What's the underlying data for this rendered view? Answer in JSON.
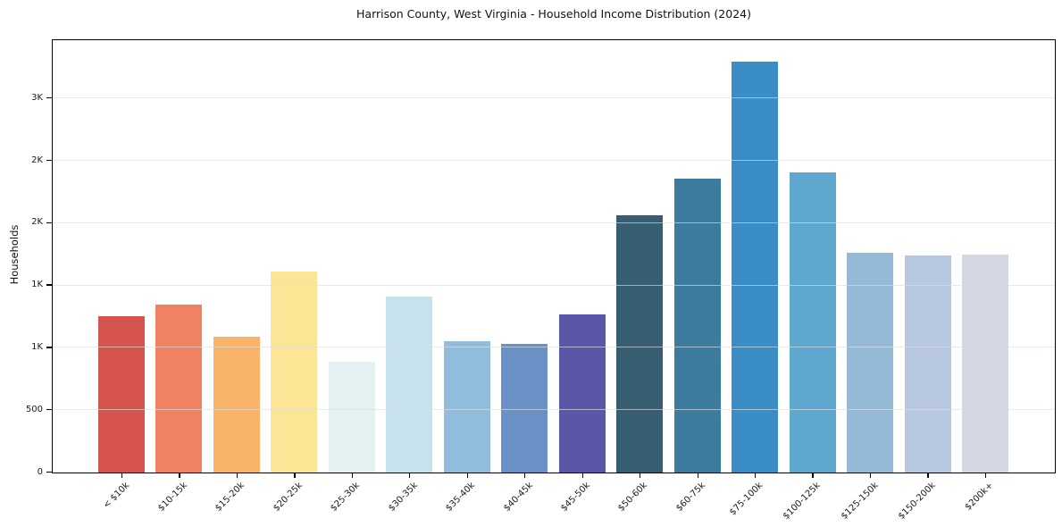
{
  "chart_data": {
    "type": "bar",
    "title": "Harrison County, West Virginia - Household Income Distribution (2024)",
    "xlabel": "",
    "ylabel": "Households",
    "categories": [
      "< $10k",
      "$10-15k",
      "$15-20k",
      "$20-25k",
      "$25-30k",
      "$30-35k",
      "$35-40k",
      "$40-45k",
      "$45-50k",
      "$50-60k",
      "$60-75k",
      "$75-100k",
      "$100-125k",
      "$125-150k",
      "$150-200k",
      "$200k+"
    ],
    "values": [
      1255,
      1345,
      1090,
      1615,
      885,
      1410,
      1050,
      1035,
      1265,
      2060,
      2355,
      3295,
      2410,
      1765,
      1740,
      1745
    ],
    "bar_colors": [
      "#d6544e",
      "#f08262",
      "#f9b469",
      "#fde596",
      "#e4f1f3",
      "#c5e2ee",
      "#90bddb",
      "#6b90c6",
      "#5b56a7",
      "#375d70",
      "#3b7b9e",
      "#3a8ec5",
      "#5ea8cd",
      "#94bad8",
      "#b7c7df",
      "#d6d7e5"
    ],
    "ylim": [
      0,
      3460
    ],
    "yticks": [
      {
        "value": 0,
        "label": "0"
      },
      {
        "value": 500,
        "label": "500"
      },
      {
        "value": 1000,
        "label": "1K"
      },
      {
        "value": 1500,
        "label": "1K"
      },
      {
        "value": 2000,
        "label": "2K"
      },
      {
        "value": 2500,
        "label": "2K"
      },
      {
        "value": 3000,
        "label": "3K"
      }
    ],
    "grid": "horizontal",
    "legend": "none"
  }
}
